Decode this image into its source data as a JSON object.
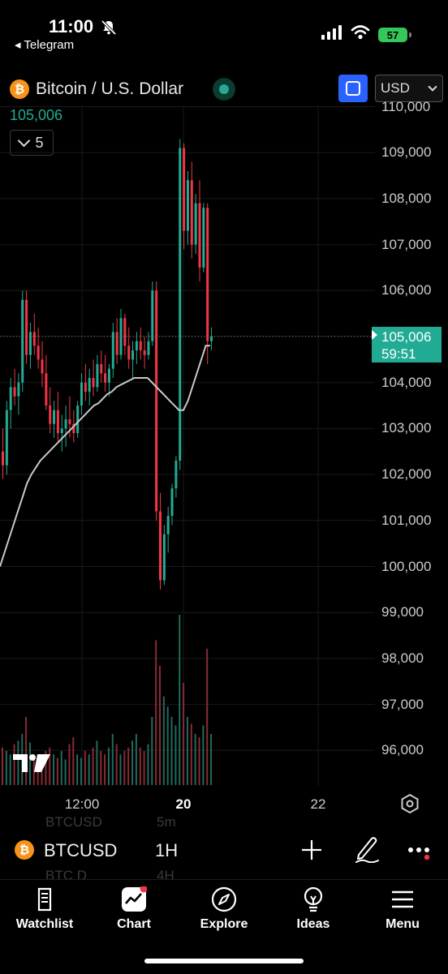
{
  "status_bar": {
    "time": "11:00",
    "back_app": "◂ Telegram",
    "battery": "57"
  },
  "header": {
    "symbol_title": "Bitcoin / U.S. Dollar",
    "coin_glyph": "₿",
    "last_value": "105,006",
    "indicator_count": "5",
    "currency": "USD"
  },
  "price_axis": {
    "ticks": [
      "110,000",
      "109,000",
      "108,000",
      "107,000",
      "106,000",
      "105,000",
      "104,000",
      "103,000",
      "102,000",
      "101,000",
      "100,000",
      "99,000",
      "98,000",
      "97,000",
      "96,000"
    ],
    "current_price": "105,006",
    "countdown": "59:51"
  },
  "time_axis": {
    "labels": [
      "12:00",
      "20",
      "22"
    ]
  },
  "symbol_bar": {
    "ticker": "BTCUSD",
    "interval": "1H",
    "ghost_ticker_above": "BTCUSD",
    "ghost_interval_above": "5m",
    "ghost_ticker_below": "BTC D",
    "ghost_interval_below": "4H"
  },
  "tabs": [
    {
      "label": "Watchlist",
      "icon": "watchlist-icon"
    },
    {
      "label": "Chart",
      "icon": "chart-icon"
    },
    {
      "label": "Explore",
      "icon": "compass-icon"
    },
    {
      "label": "Ideas",
      "icon": "lightbulb-icon"
    },
    {
      "label": "Menu",
      "icon": "hamburger-icon"
    }
  ],
  "colors": {
    "up": "#22ab94",
    "down": "#f23645",
    "accent": "#2962ff",
    "ma": "#c8c8c8"
  },
  "chart_data": {
    "type": "candlestick",
    "symbol": "BTCUSD",
    "interval": "1H",
    "ylim": [
      95500,
      110000
    ],
    "current_price": 105006,
    "x_labels": [
      "12:00",
      "20",
      "22"
    ],
    "candles": [
      [
        102500,
        103000,
        101900,
        102200
      ],
      [
        102200,
        103600,
        102000,
        103400
      ],
      [
        103400,
        104100,
        103000,
        103900
      ],
      [
        103900,
        104300,
        103500,
        103700
      ],
      [
        103700,
        104200,
        103300,
        104000
      ],
      [
        104000,
        106000,
        103800,
        105800
      ],
      [
        105800,
        106000,
        104400,
        104600
      ],
      [
        104600,
        105300,
        104300,
        105100
      ],
      [
        105100,
        105500,
        104600,
        104800
      ],
      [
        104800,
        105200,
        104300,
        104500
      ],
      [
        104500,
        104900,
        103900,
        104200
      ],
      [
        104200,
        104600,
        103400,
        103500
      ],
      [
        103500,
        103900,
        102900,
        103100
      ],
      [
        103100,
        103600,
        102800,
        103400
      ],
      [
        103400,
        103800,
        102700,
        102900
      ],
      [
        102900,
        103300,
        102500,
        103000
      ],
      [
        103000,
        103500,
        102600,
        103200
      ],
      [
        103200,
        103700,
        102800,
        103100
      ],
      [
        103100,
        103400,
        102700,
        102900
      ],
      [
        102900,
        103600,
        102800,
        103500
      ],
      [
        103500,
        104200,
        103300,
        104000
      ],
      [
        104000,
        104400,
        103600,
        103800
      ],
      [
        103800,
        104300,
        103500,
        104100
      ],
      [
        104100,
        104500,
        103700,
        103900
      ],
      [
        103900,
        104600,
        103800,
        104400
      ],
      [
        104400,
        104700,
        104000,
        104200
      ],
      [
        104200,
        104600,
        103800,
        104000
      ],
      [
        104000,
        104400,
        103700,
        104300
      ],
      [
        104300,
        105300,
        104100,
        105100
      ],
      [
        105100,
        105400,
        104400,
        104600
      ],
      [
        104600,
        105600,
        104500,
        105400
      ],
      [
        105400,
        105500,
        104600,
        104800
      ],
      [
        104800,
        105200,
        104300,
        104500
      ],
      [
        104500,
        104900,
        104100,
        104700
      ],
      [
        104700,
        105100,
        104400,
        104900
      ],
      [
        104900,
        105200,
        104500,
        104700
      ],
      [
        104700,
        105000,
        104300,
        104600
      ],
      [
        104600,
        105100,
        104500,
        104900
      ],
      [
        104900,
        106200,
        104800,
        106000
      ],
      [
        106000,
        106200,
        101000,
        101200
      ],
      [
        101200,
        101600,
        99500,
        99700
      ],
      [
        99700,
        100900,
        99600,
        100700
      ],
      [
        100700,
        101300,
        100300,
        101100
      ],
      [
        101100,
        101800,
        100900,
        101700
      ],
      [
        101700,
        102400,
        101500,
        102300
      ],
      [
        102300,
        109300,
        102100,
        109100
      ],
      [
        109100,
        109200,
        106900,
        107300
      ],
      [
        107300,
        108600,
        107000,
        108400
      ],
      [
        108400,
        108800,
        106700,
        107000
      ],
      [
        107000,
        108100,
        106800,
        107900
      ],
      [
        107900,
        108400,
        106200,
        106500
      ],
      [
        106500,
        107900,
        106400,
        107800
      ],
      [
        107800,
        107900,
        104400,
        104900
      ],
      [
        104900,
        105200,
        104700,
        105006
      ]
    ],
    "ma_series": [
      100000,
      100300,
      100600,
      100900,
      101200,
      101500,
      101800,
      102000,
      102150,
      102300,
      102400,
      102500,
      102600,
      102700,
      102800,
      102900,
      103000,
      103100,
      103200,
      103300,
      103400,
      103500,
      103550,
      103650,
      103750,
      103800,
      103900,
      103950,
      104000,
      104050,
      104100,
      104100,
      104100,
      104100,
      104000,
      103900,
      103800,
      103700,
      103600,
      103500,
      103400,
      103400,
      103600,
      103900,
      104200,
      104500,
      104800,
      104800
    ],
    "volume": [
      22,
      20,
      18,
      24,
      26,
      30,
      40,
      25,
      18,
      16,
      14,
      20,
      22,
      18,
      16,
      20,
      15,
      24,
      28,
      18,
      16,
      20,
      18,
      22,
      26,
      20,
      18,
      22,
      30,
      24,
      18,
      20,
      22,
      26,
      30,
      22,
      20,
      24,
      40,
      85,
      70,
      52,
      46,
      40,
      35,
      100,
      60,
      40,
      36,
      30,
      28,
      35,
      80,
      30
    ]
  }
}
